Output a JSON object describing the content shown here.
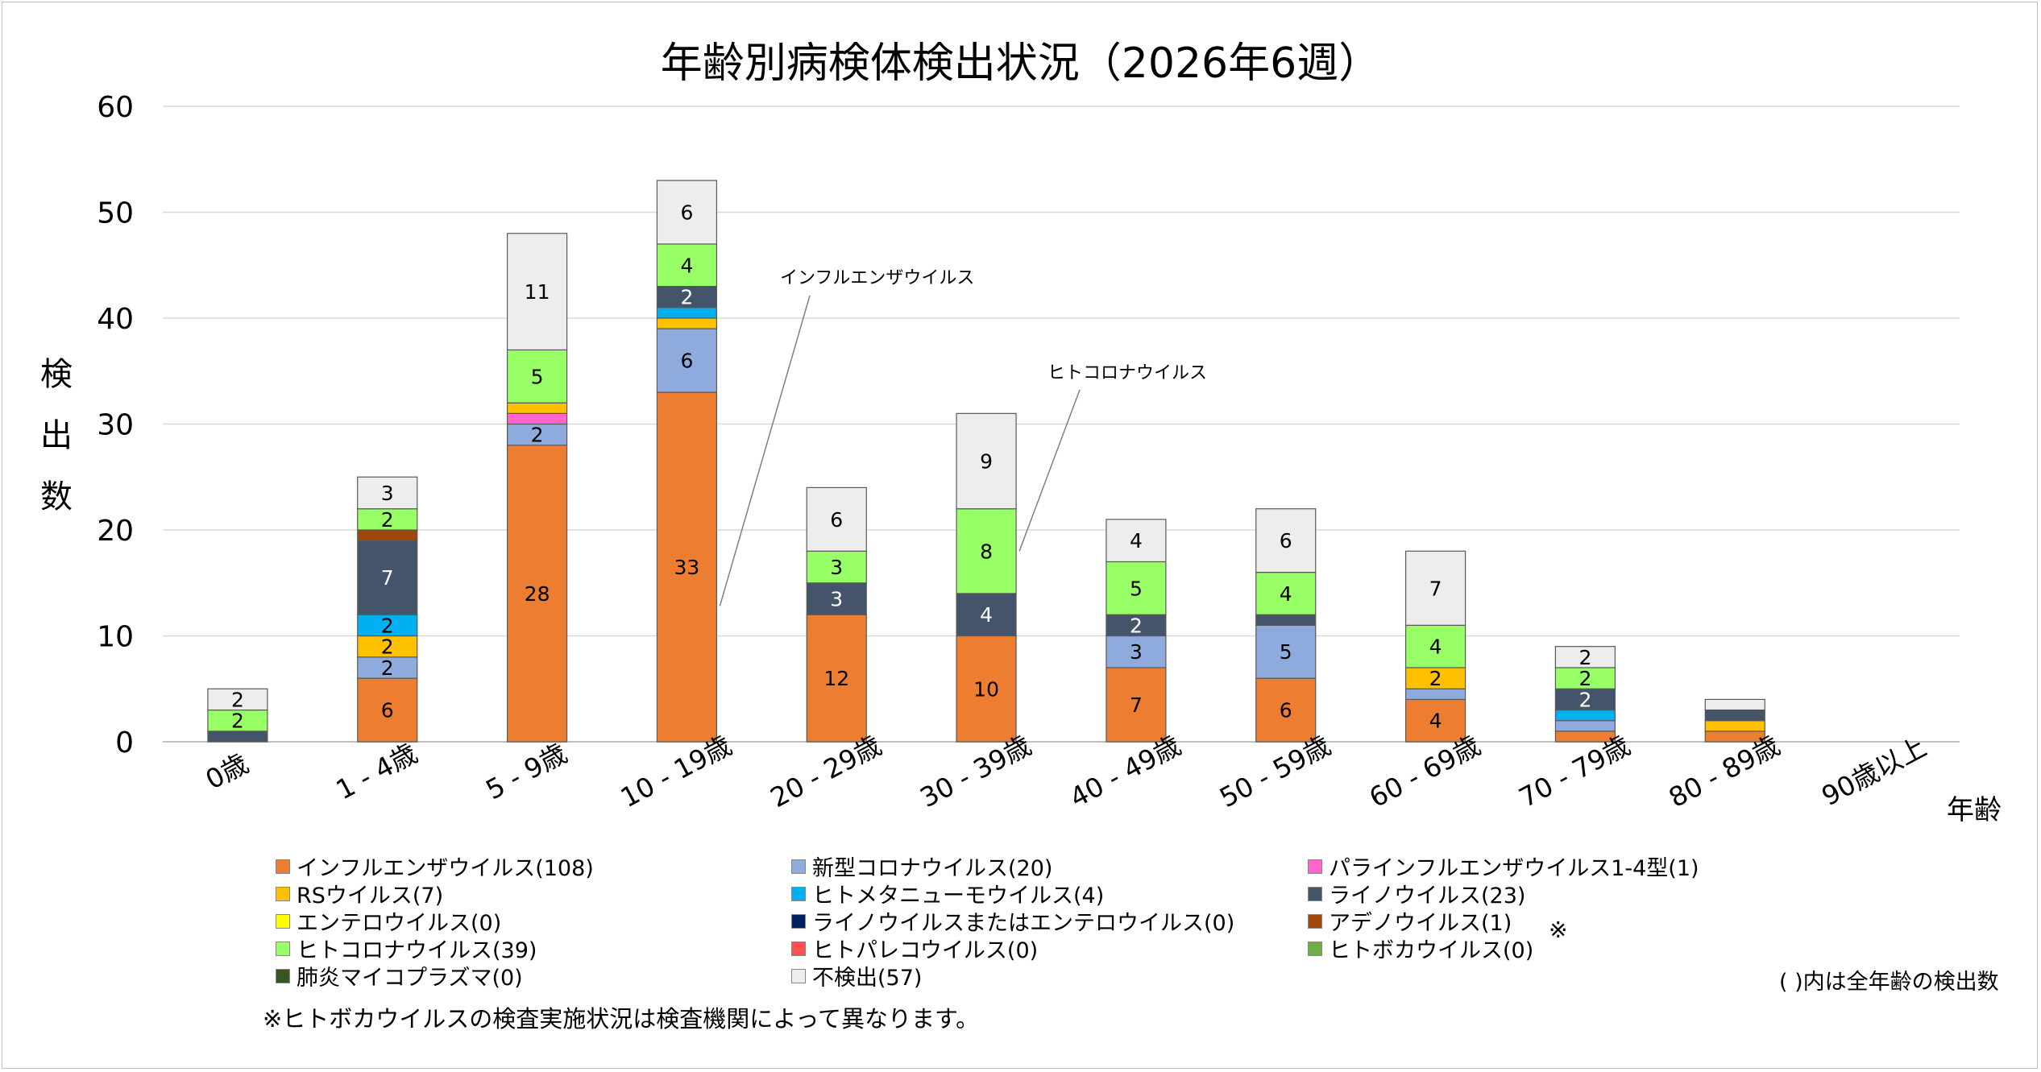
{
  "chart_data": {
    "type": "bar",
    "stacked": true,
    "title": "年齢別病検体検出状況（2026年6週）",
    "ylabel": "検出数",
    "xlabel": "年齢",
    "ylim": [
      0,
      60
    ],
    "yticks": [
      0,
      10,
      20,
      30,
      40,
      50,
      60
    ],
    "grid": true,
    "legend_position": "bottom",
    "categories": [
      "0歳",
      "1 - 4歳",
      "5 - 9歳",
      "10 - 19歳",
      "20 - 29歳",
      "30 - 39歳",
      "40 - 49歳",
      "50 - 59歳",
      "60 - 69歳",
      "70 - 79歳",
      "80 - 89歳",
      "90歳以上"
    ],
    "series": [
      {
        "name": "インフルエンザウイルス(108)",
        "color": "#ed7d31",
        "values": [
          0,
          6,
          28,
          33,
          12,
          10,
          7,
          6,
          4,
          1,
          1,
          0
        ]
      },
      {
        "name": "新型コロナウイルス(20)",
        "color": "#8faadc",
        "values": [
          0,
          2,
          2,
          6,
          0,
          0,
          3,
          5,
          1,
          1,
          0,
          0
        ]
      },
      {
        "name": "パラインフルエンザウイルス1-4型(1)",
        "color": "#ff66cc",
        "values": [
          0,
          0,
          1,
          0,
          0,
          0,
          0,
          0,
          0,
          0,
          0,
          0
        ]
      },
      {
        "name": "RSウイルス(7)",
        "color": "#ffc000",
        "values": [
          0,
          2,
          1,
          1,
          0,
          0,
          0,
          0,
          2,
          0,
          1,
          0
        ]
      },
      {
        "name": "ヒトメタニューモウイルス(4)",
        "color": "#00b0f0",
        "values": [
          0,
          2,
          0,
          1,
          0,
          0,
          0,
          0,
          0,
          1,
          0,
          0
        ]
      },
      {
        "name": "ライノウイルス(23)",
        "color": "#44546a",
        "values": [
          1,
          7,
          0,
          2,
          3,
          4,
          2,
          1,
          0,
          2,
          1,
          0
        ]
      },
      {
        "name": "エンテロウイルス(0)",
        "color": "#ffff00",
        "values": [
          0,
          0,
          0,
          0,
          0,
          0,
          0,
          0,
          0,
          0,
          0,
          0
        ]
      },
      {
        "name": "ライノウイルスまたはエンテロウイルス(0)",
        "color": "#002060",
        "values": [
          0,
          0,
          0,
          0,
          0,
          0,
          0,
          0,
          0,
          0,
          0,
          0
        ]
      },
      {
        "name": "アデノウイルス(1)",
        "color": "#9e480e",
        "values": [
          0,
          1,
          0,
          0,
          0,
          0,
          0,
          0,
          0,
          0,
          0,
          0
        ]
      },
      {
        "name": "ヒトコロナウイルス(39)",
        "color": "#99ff66",
        "values": [
          2,
          2,
          5,
          4,
          3,
          8,
          5,
          4,
          4,
          2,
          0,
          0
        ]
      },
      {
        "name": "ヒトパレコウイルス(0)",
        "color": "#ff5050",
        "values": [
          0,
          0,
          0,
          0,
          0,
          0,
          0,
          0,
          0,
          0,
          0,
          0
        ]
      },
      {
        "name": "ヒトボカウイルス(0)",
        "color": "#70ad47",
        "values": [
          0,
          0,
          0,
          0,
          0,
          0,
          0,
          0,
          0,
          0,
          0,
          0
        ]
      },
      {
        "name": "肺炎マイコプラズマ(0)",
        "color": "#375623",
        "values": [
          0,
          0,
          0,
          0,
          0,
          0,
          0,
          0,
          0,
          0,
          0,
          0
        ]
      },
      {
        "name": "不検出(57)",
        "color": "#ededed",
        "values": [
          2,
          3,
          11,
          6,
          6,
          9,
          4,
          6,
          7,
          2,
          1,
          0
        ]
      }
    ],
    "data_labels": [
      {
        "category": "0歳",
        "series": "ヒトコロナウイルス(39)",
        "text": "2"
      },
      {
        "category": "0歳",
        "series": "不検出(57)",
        "text": "2"
      },
      {
        "category": "1 - 4歳",
        "series": "インフルエンザウイルス(108)",
        "text": "6"
      },
      {
        "category": "1 - 4歳",
        "series": "新型コロナウイルス(20)",
        "text": "2"
      },
      {
        "category": "1 - 4歳",
        "series": "RSウイルス(7)",
        "text": "2"
      },
      {
        "category": "1 - 4歳",
        "series": "ヒトメタニューモウイルス(4)",
        "text": "2"
      },
      {
        "category": "1 - 4歳",
        "series": "ライノウイルス(23)",
        "text": "7"
      },
      {
        "category": "1 - 4歳",
        "series": "ヒトコロナウイルス(39)",
        "text": "2"
      },
      {
        "category": "1 - 4歳",
        "series": "不検出(57)",
        "text": "3"
      },
      {
        "category": "5 - 9歳",
        "series": "インフルエンザウイルス(108)",
        "text": "28"
      },
      {
        "category": "5 - 9歳",
        "series": "新型コロナウイルス(20)",
        "text": "2"
      },
      {
        "category": "5 - 9歳",
        "series": "ヒトコロナウイルス(39)",
        "text": "5"
      },
      {
        "category": "5 - 9歳",
        "series": "不検出(57)",
        "text": "11"
      },
      {
        "category": "10 - 19歳",
        "series": "インフルエンザウイルス(108)",
        "text": "33"
      },
      {
        "category": "10 - 19歳",
        "series": "新型コロナウイルス(20)",
        "text": "6"
      },
      {
        "category": "10 - 19歳",
        "series": "ライノウイルス(23)",
        "text": "2"
      },
      {
        "category": "10 - 19歳",
        "series": "ヒトコロナウイルス(39)",
        "text": "4"
      },
      {
        "category": "10 - 19歳",
        "series": "不検出(57)",
        "text": "6"
      },
      {
        "category": "20 - 29歳",
        "series": "インフルエンザウイルス(108)",
        "text": "12"
      },
      {
        "category": "20 - 29歳",
        "series": "ライノウイルス(23)",
        "text": "3"
      },
      {
        "category": "20 - 29歳",
        "series": "ヒトコロナウイルス(39)",
        "text": "3"
      },
      {
        "category": "20 - 29歳",
        "series": "不検出(57)",
        "text": "6"
      },
      {
        "category": "30 - 39歳",
        "series": "インフルエンザウイルス(108)",
        "text": "10"
      },
      {
        "category": "30 - 39歳",
        "series": "ライノウイルス(23)",
        "text": "4"
      },
      {
        "category": "30 - 39歳",
        "series": "ヒトコロナウイルス(39)",
        "text": "8"
      },
      {
        "category": "30 - 39歳",
        "series": "不検出(57)",
        "text": "9"
      },
      {
        "category": "40 - 49歳",
        "series": "インフルエンザウイルス(108)",
        "text": "7"
      },
      {
        "category": "40 - 49歳",
        "series": "新型コロナウイルス(20)",
        "text": "3"
      },
      {
        "category": "40 - 49歳",
        "series": "ライノウイルス(23)",
        "text": "2"
      },
      {
        "category": "40 - 49歳",
        "series": "ヒトコロナウイルス(39)",
        "text": "5"
      },
      {
        "category": "40 - 49歳",
        "series": "不検出(57)",
        "text": "4"
      },
      {
        "category": "50 - 59歳",
        "series": "インフルエンザウイルス(108)",
        "text": "6"
      },
      {
        "category": "50 - 59歳",
        "series": "新型コロナウイルス(20)",
        "text": "5"
      },
      {
        "category": "50 - 59歳",
        "series": "ヒトコロナウイルス(39)",
        "text": "4"
      },
      {
        "category": "50 - 59歳",
        "series": "不検出(57)",
        "text": "6"
      },
      {
        "category": "60 - 69歳",
        "series": "インフルエンザウイルス(108)",
        "text": "4"
      },
      {
        "category": "60 - 69歳",
        "series": "RSウイルス(7)",
        "text": "2"
      },
      {
        "category": "60 - 69歳",
        "series": "ヒトコロナウイルス(39)",
        "text": "4"
      },
      {
        "category": "60 - 69歳",
        "series": "不検出(57)",
        "text": "7"
      },
      {
        "category": "70 - 79歳",
        "series": "ライノウイルス(23)",
        "text": "2"
      },
      {
        "category": "70 - 79歳",
        "series": "ヒトコロナウイルス(39)",
        "text": "2"
      },
      {
        "category": "70 - 79歳",
        "series": "不検出(57)",
        "text": "2"
      }
    ],
    "annotations": [
      {
        "text": "インフルエンザウイルス",
        "category": "10 - 19歳",
        "series": "インフルエンザウイルス(108)"
      },
      {
        "text": "ヒトコロナウイルス",
        "category": "30 - 39歳",
        "series": "ヒトコロナウイルス(39)"
      }
    ]
  },
  "legend_mark": "※",
  "count_note": "( )内は全年齢の検出数",
  "footnote": "※ヒトボカウイルスの検査実施状況は検査機関によって異なります。"
}
